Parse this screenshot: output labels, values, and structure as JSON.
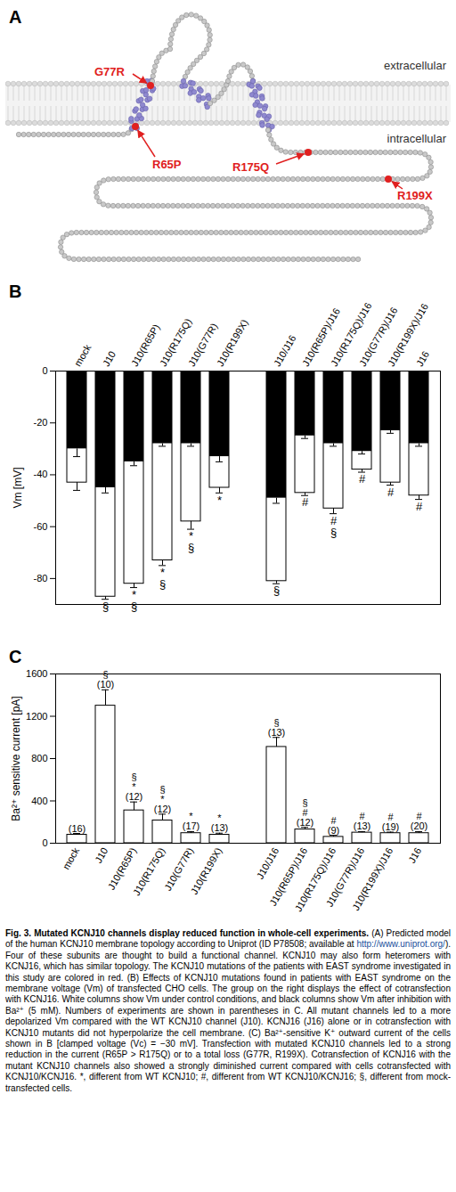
{
  "diagram": {
    "panel": "A",
    "membrane_labels": [
      "extracellular",
      "intracellular"
    ],
    "mutations": [
      "G77R",
      "R65P",
      "R175Q",
      "R199X"
    ]
  },
  "chart_data": [
    {
      "panel": "B",
      "type": "bar",
      "y_label": "Vm [mV]",
      "categories": [
        "mock",
        "J10",
        "J10(R65P)",
        "J10(R175Q)",
        "J10(G77R)",
        "J10(R199X)",
        null,
        "J10/J16",
        "J10(R65P)/J16",
        "J10(R175Q)/J16",
        "J10(G77R)/J16",
        "J10(R199X)/J16",
        "J16"
      ],
      "series": [
        {
          "color": "#ffffff",
          "values": [
            -43,
            -87,
            -82,
            -73,
            -58,
            -45,
            null,
            -81,
            -47,
            -53,
            -38,
            -43,
            -48
          ],
          "errors": [
            3,
            1,
            1.5,
            2,
            3,
            2,
            null,
            1,
            1,
            2,
            1,
            1,
            1.5
          ]
        },
        {
          "color": "#000000",
          "values": [
            -30,
            -45,
            -35,
            -28,
            -28,
            -33,
            null,
            -49,
            -25,
            -28,
            -31,
            -23,
            -28
          ],
          "errors": [
            3,
            2,
            1.5,
            1,
            1,
            2,
            null,
            2,
            1,
            1,
            1,
            1,
            1
          ]
        }
      ],
      "significance": [
        null,
        [
          "§"
        ],
        [
          "*",
          "§"
        ],
        [
          "*",
          "§"
        ],
        [
          "*",
          "§"
        ],
        [
          "*"
        ],
        null,
        [
          "§"
        ],
        [
          "#"
        ],
        [
          "#",
          "§"
        ],
        [
          "#"
        ],
        [
          "#"
        ],
        [
          "#"
        ]
      ],
      "ylim": [
        -90,
        0
      ],
      "yticks": [
        0,
        -20,
        -40,
        -60,
        -80
      ]
    },
    {
      "panel": "C",
      "type": "bar",
      "y_label": "Ba²⁺ sensitive current [pA]",
      "categories": [
        "mock",
        "J10",
        "J10(R65P)",
        "J10(R175Q)",
        "J10(G77R)",
        "J10(R199X)",
        null,
        "J10/J16",
        "J10(R65P)/J16",
        "J10(R175Q)/J16",
        "J10(G77R)/J16",
        "J10(R199X)/J16",
        "J16"
      ],
      "values": [
        80,
        1300,
        310,
        215,
        95,
        80,
        null,
        910,
        130,
        60,
        100,
        95,
        95
      ],
      "errors": [
        12,
        150,
        80,
        60,
        15,
        15,
        null,
        90,
        20,
        15,
        10,
        10,
        15
      ],
      "n_labels": [
        "(16)",
        "(10)",
        "(12)",
        "(12)",
        "(17)",
        "(13)",
        null,
        "(13)",
        "(12)",
        "(9)",
        "(13)",
        "(19)",
        "(20)"
      ],
      "significance": [
        null,
        [
          "§"
        ],
        [
          "§",
          "*"
        ],
        [
          "§",
          "*"
        ],
        [
          "*"
        ],
        [
          "*"
        ],
        null,
        [
          "§"
        ],
        [
          "§",
          "#"
        ],
        [
          "#"
        ],
        [
          "#"
        ],
        [
          "#"
        ],
        [
          "#"
        ]
      ],
      "color": "#ffffff",
      "ylim": [
        0,
        1600
      ],
      "yticks": [
        0,
        400,
        800,
        1200,
        1600
      ]
    }
  ],
  "caption": {
    "label": "Fig. 3.",
    "title": "Mutated KCNJ10 channels display reduced function in whole-cell experiments.",
    "body": [
      {
        "text": "(A) Predicted model of the human KCNJ10 membrane topology according to Uniprot (ID P78508; available at "
      },
      {
        "text": "http://www.uniprot.org/",
        "link": true
      },
      {
        "text": "). Four of these subunits are thought to build a functional channel. KCNJ10 may also form heteromers with KCNJ16, which has similar topology. The KCNJ10 mutations of the patients with EAST syndrome investigated in this study are colored in red. (B) Effects of KCNJ10 mutations found in patients with EAST syndrome on the membrane voltage (Vm) of transfected CHO cells. The group on the right displays the effect of cotransfection with KCNJ16. White columns show Vm under control conditions, and black columns show Vm after inhibition with Ba²⁺ (5 mM). Numbers of experiments are shown in parentheses in C. All mutant channels led to a more depolarized Vm compared with the WT KCNJ10 channel (J10). KCNJ16 (J16) alone or in cotransfection with KCNJ10 mutants did not hyperpolarize the cell membrane. (C) Ba²⁺-sensitive K⁺ outward current of the cells shown in B [clamped voltage (Vc) = −30 mV]. Transfection with mutated KCNJ10 channels led to a strong reduction in the current (R65P > R175Q) or to a total loss (G77R, R199X). Cotransfection of KCNJ16 with the mutant KCNJ10 channels also showed a strongly diminished current compared with cells cotransfected with KCNJ10/KCNJ16. *, different from WT KCNJ10; #, different from WT KCNJ10/KCNJ16; §, different from mock-transfected cells."
      }
    ]
  }
}
